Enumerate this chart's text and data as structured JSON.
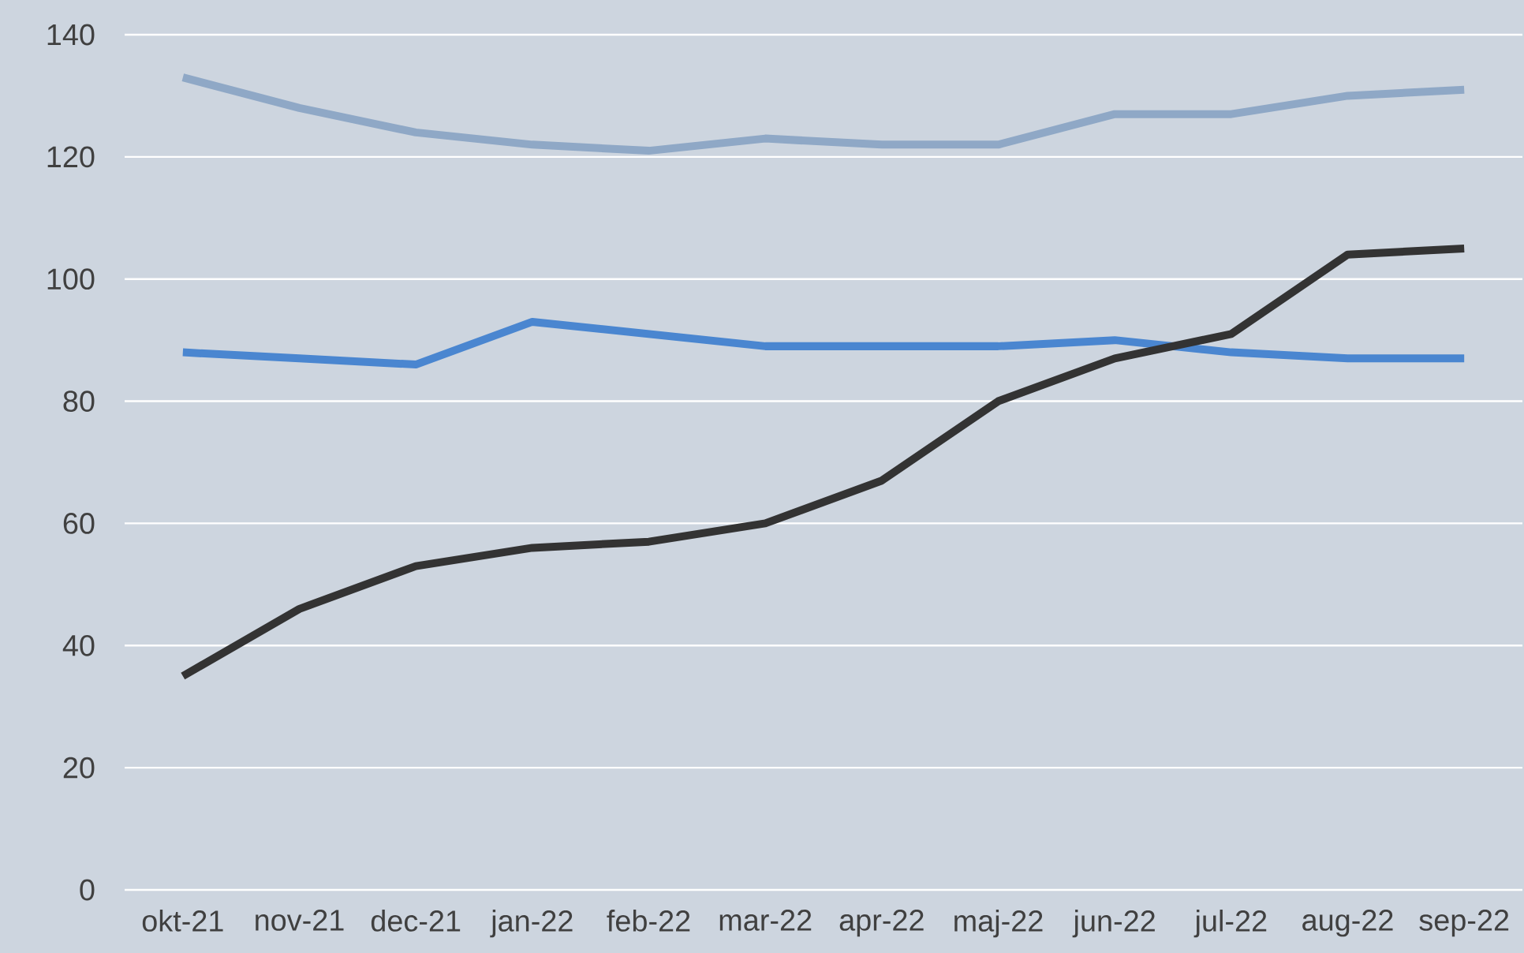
{
  "chart_data": {
    "type": "line",
    "categories": [
      "okt-21",
      "nov-21",
      "dec-21",
      "jan-22",
      "feb-22",
      "mar-22",
      "apr-22",
      "maj-22",
      "jun-22",
      "jul-22",
      "aug-22",
      "sep-22"
    ],
    "series": [
      {
        "color": "#8fa8c6",
        "values": [
          133,
          128,
          124,
          122,
          121,
          123,
          122,
          122,
          127,
          127,
          130,
          131
        ]
      },
      {
        "color": "#4a86d0",
        "values": [
          88,
          87,
          86,
          93,
          91,
          89,
          89,
          89,
          90,
          88,
          87,
          87
        ]
      },
      {
        "color": "#333333",
        "values": [
          35,
          46,
          53,
          56,
          57,
          60,
          67,
          80,
          87,
          91,
          104,
          105
        ]
      }
    ],
    "ylim": [
      0,
      140
    ],
    "yticks": [
      0,
      20,
      40,
      60,
      80,
      100,
      120,
      140
    ],
    "grid": "y"
  }
}
